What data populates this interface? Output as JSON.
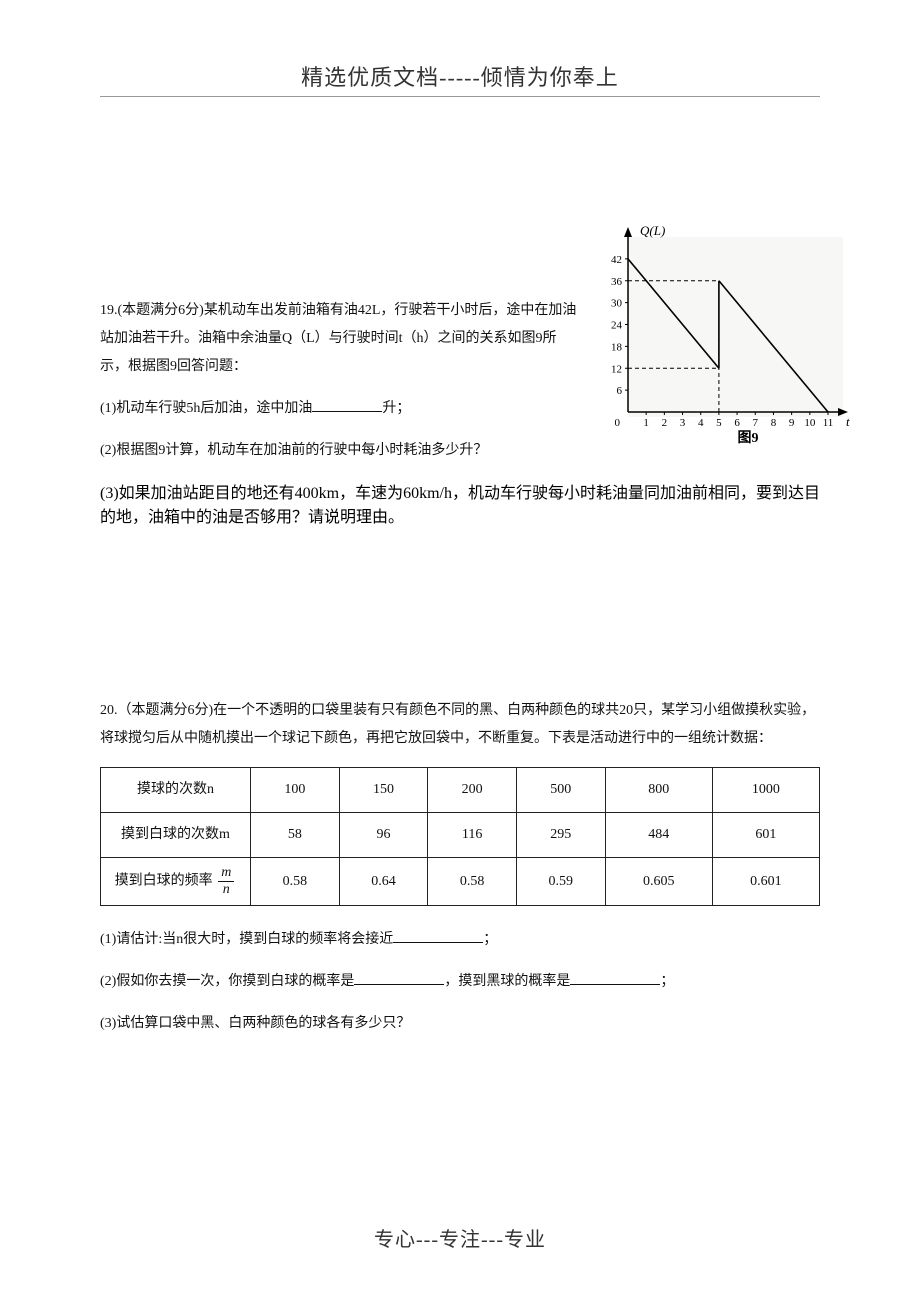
{
  "header": {
    "title": "精选优质文档-----倾情为你奉上"
  },
  "q19": {
    "stem1": "19.(本题满分6分)某机动车出发前油箱有油42L，行驶若干小时后，途中在加油站加油若干升。油箱中余油量Q（L）与行驶时间t（h）之间的关系如图9所示，根据图9回答问题：",
    "part1a": "(1)机动车行驶5h后加油，途中加油",
    "part1b": "升；",
    "part2": "(2)根据图9计算，机动车在加油前的行驶中每小时耗油多少升？",
    "part3": "(3)如果加油站距目的地还有400km，车速为60km/h，机动车行驶每小时耗油量同加油前相同，要到达目的地，油箱中的油是否够用？请说明理由。"
  },
  "graph": {
    "y_label": "Q(L)",
    "x_label": "t(h)",
    "caption": "图9",
    "y_ticks": [
      6,
      12,
      18,
      24,
      30,
      36,
      42
    ],
    "x_ticks": [
      1,
      2,
      3,
      4,
      5,
      6,
      7,
      8,
      9,
      10,
      11
    ],
    "series1": {
      "points": [
        [
          0,
          42
        ],
        [
          5,
          12
        ]
      ],
      "color": "#000000"
    },
    "jump": {
      "points": [
        [
          5,
          12
        ],
        [
          5,
          36
        ]
      ],
      "color": "#000000"
    },
    "series2": {
      "points": [
        [
          5,
          36
        ],
        [
          11,
          0
        ]
      ],
      "color": "#000000"
    },
    "dashed": [
      {
        "points": [
          [
            0,
            36
          ],
          [
            5,
            36
          ]
        ]
      },
      {
        "points": [
          [
            0,
            12
          ],
          [
            5,
            12
          ]
        ]
      },
      {
        "points": [
          [
            5,
            0
          ],
          [
            5,
            36
          ]
        ]
      }
    ],
    "axis_color": "#000000",
    "bg_color": "#f7f7f5"
  },
  "q20": {
    "stem": "20.（本题满分6分)在一个不透明的口袋里装有只有颜色不同的黑、白两种颜色的球共20只，某学习小组做摸秋实验，将球搅匀后从中随机摸出一个球记下颜色，再把它放回袋中，不断重复。下表是活动进行中的一组统计数据：",
    "table": {
      "row1_label": "摸球的次数n",
      "row2_label": "摸到白球的次数m",
      "row3_label_a": "摸到白球的频率",
      "row3_num": "m",
      "row3_den": "n",
      "columns": [
        "100",
        "150",
        "200",
        "500",
        "800",
        "1000"
      ],
      "row2": [
        "58",
        "96",
        "116",
        "295",
        "484",
        "601"
      ],
      "row3": [
        "0.58",
        "0.64",
        "0.58",
        "0.59",
        "0.605",
        "0.601"
      ]
    },
    "part1a": "(1)请估计:当n很大时，摸到白球的频率将会接近",
    "part1b": "；",
    "part2a": "(2)假如你去摸一次，你摸到白球的概率是",
    "part2b": "，摸到黑球的概率是",
    "part2c": "；",
    "part3": "(3)试估算口袋中黑、白两种颜色的球各有多少只？"
  },
  "footer": "专心---专注---专业"
}
